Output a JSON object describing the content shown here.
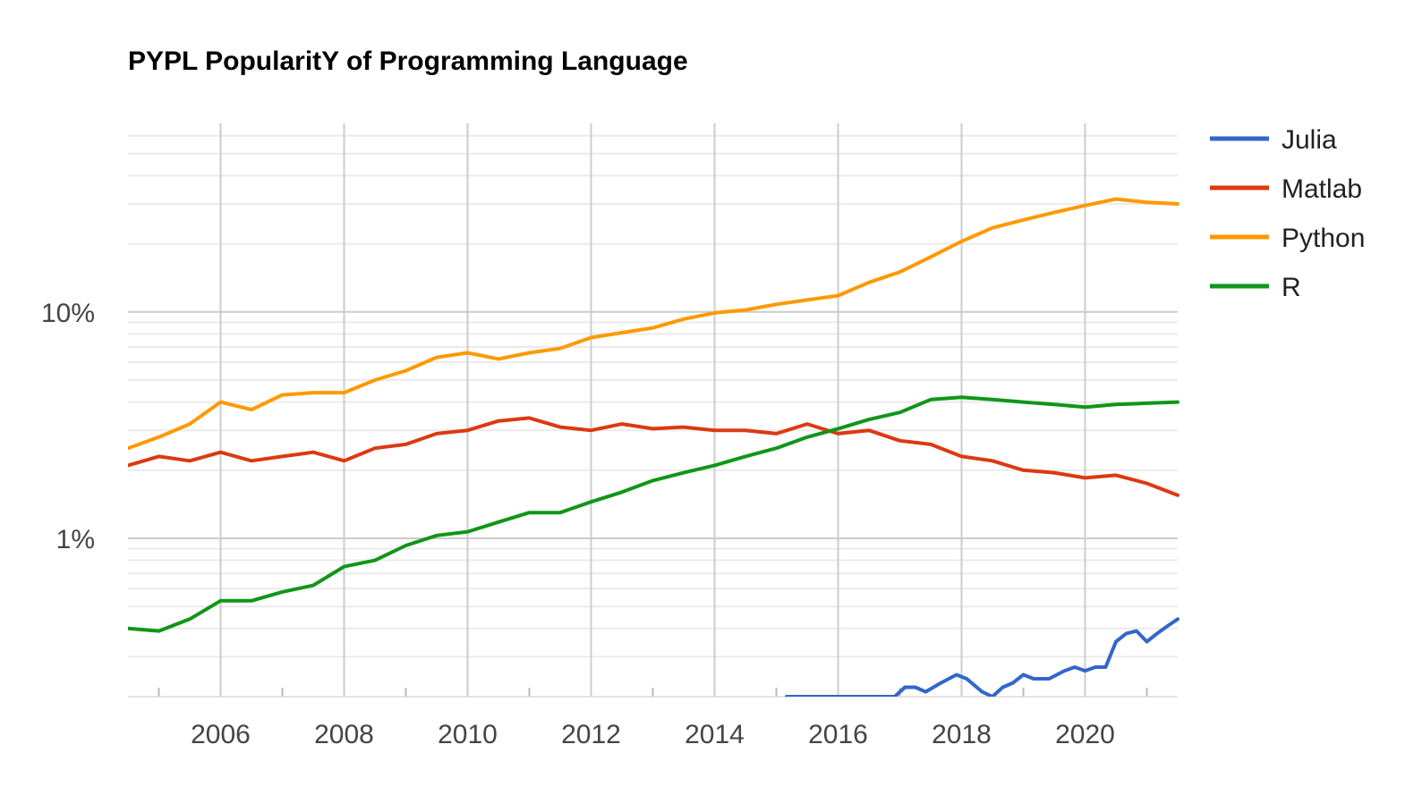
{
  "chart_data": {
    "type": "line",
    "title": "PYPL PopularitY of Programming Language",
    "xlabel": "",
    "ylabel": "",
    "x_scale": "time",
    "y_scale": "log",
    "xlim": [
      "2004-07",
      "2021-07"
    ],
    "ylim": [
      0.2,
      68
    ],
    "x_ticks": [
      {
        "value": 2006,
        "label": "2006"
      },
      {
        "value": 2008,
        "label": "2008"
      },
      {
        "value": 2010,
        "label": "2010"
      },
      {
        "value": 2012,
        "label": "2012"
      },
      {
        "value": 2014,
        "label": "2014"
      },
      {
        "value": 2016,
        "label": "2016"
      },
      {
        "value": 2018,
        "label": "2018"
      },
      {
        "value": 2020,
        "label": "2020"
      }
    ],
    "y_ticks": [
      {
        "value": 1,
        "label": "1%"
      },
      {
        "value": 10,
        "label": "10%"
      }
    ],
    "grid": true,
    "legend_position": "right",
    "series": [
      {
        "name": "Julia",
        "color": "#3366cc",
        "x": [
          "2015-03",
          "2015-05",
          "2016-01",
          "2016-03",
          "2016-06",
          "2016-09",
          "2016-12",
          "2017-02",
          "2017-04",
          "2017-06",
          "2017-09",
          "2017-12",
          "2018-02",
          "2018-05",
          "2018-07",
          "2018-09",
          "2018-11",
          "2019-01",
          "2019-03",
          "2019-06",
          "2019-09",
          "2019-11",
          "2020-01",
          "2020-03",
          "2020-05",
          "2020-07",
          "2020-09",
          "2020-11",
          "2021-01",
          "2021-03",
          "2021-05",
          "2021-07"
        ],
        "values": [
          0.2,
          0.2,
          0.2,
          0.2,
          0.2,
          0.2,
          0.2,
          0.22,
          0.22,
          0.21,
          0.23,
          0.25,
          0.24,
          0.21,
          0.2,
          0.22,
          0.23,
          0.25,
          0.24,
          0.24,
          0.26,
          0.27,
          0.26,
          0.27,
          0.27,
          0.35,
          0.38,
          0.39,
          0.35,
          0.38,
          0.41,
          0.44
        ]
      },
      {
        "name": "Matlab",
        "color": "#dc3912",
        "x": [
          "2004-07",
          "2005-01",
          "2005-07",
          "2006-01",
          "2006-07",
          "2007-01",
          "2007-07",
          "2008-01",
          "2008-07",
          "2009-01",
          "2009-07",
          "2010-01",
          "2010-07",
          "2011-01",
          "2011-07",
          "2012-01",
          "2012-07",
          "2013-01",
          "2013-07",
          "2014-01",
          "2014-07",
          "2015-01",
          "2015-07",
          "2016-01",
          "2016-07",
          "2017-01",
          "2017-07",
          "2018-01",
          "2018-07",
          "2019-01",
          "2019-07",
          "2020-01",
          "2020-07",
          "2021-01",
          "2021-07"
        ],
        "values": [
          2.1,
          2.3,
          2.2,
          2.4,
          2.2,
          2.3,
          2.4,
          2.2,
          2.5,
          2.6,
          2.9,
          3.0,
          3.3,
          3.4,
          3.1,
          3.0,
          3.2,
          3.05,
          3.1,
          3.0,
          3.0,
          2.9,
          3.2,
          2.9,
          3.0,
          2.7,
          2.6,
          2.3,
          2.2,
          2.0,
          1.95,
          1.85,
          1.9,
          1.75,
          1.55
        ]
      },
      {
        "name": "Python",
        "color": "#ff9900",
        "x": [
          "2004-07",
          "2005-01",
          "2005-07",
          "2006-01",
          "2006-07",
          "2007-01",
          "2007-07",
          "2008-01",
          "2008-07",
          "2009-01",
          "2009-07",
          "2010-01",
          "2010-07",
          "2011-01",
          "2011-07",
          "2012-01",
          "2012-07",
          "2013-01",
          "2013-07",
          "2014-01",
          "2014-07",
          "2015-01",
          "2015-07",
          "2016-01",
          "2016-07",
          "2017-01",
          "2017-07",
          "2018-01",
          "2018-07",
          "2019-01",
          "2019-07",
          "2020-01",
          "2020-07",
          "2021-01",
          "2021-07"
        ],
        "values": [
          2.5,
          2.8,
          3.2,
          4.0,
          3.7,
          4.3,
          4.4,
          4.4,
          5.0,
          5.5,
          6.3,
          6.6,
          6.2,
          6.6,
          6.9,
          7.7,
          8.1,
          8.5,
          9.3,
          9.9,
          10.2,
          10.8,
          11.3,
          11.8,
          13.5,
          15.0,
          17.5,
          20.5,
          23.5,
          25.5,
          27.5,
          29.5,
          31.5,
          30.5,
          30.0
        ]
      },
      {
        "name": "R",
        "color": "#109618",
        "x": [
          "2004-07",
          "2005-01",
          "2005-07",
          "2006-01",
          "2006-07",
          "2007-01",
          "2007-07",
          "2008-01",
          "2008-07",
          "2009-01",
          "2009-07",
          "2010-01",
          "2010-07",
          "2011-01",
          "2011-07",
          "2012-01",
          "2012-07",
          "2013-01",
          "2013-07",
          "2014-01",
          "2014-07",
          "2015-01",
          "2015-07",
          "2016-01",
          "2016-07",
          "2017-01",
          "2017-07",
          "2018-01",
          "2018-07",
          "2019-01",
          "2019-07",
          "2020-01",
          "2020-07",
          "2021-01",
          "2021-07"
        ],
        "values": [
          0.4,
          0.39,
          0.44,
          0.53,
          0.53,
          0.58,
          0.62,
          0.75,
          0.8,
          0.93,
          1.03,
          1.07,
          1.18,
          1.3,
          1.3,
          1.45,
          1.6,
          1.8,
          1.95,
          2.1,
          2.3,
          2.5,
          2.8,
          3.05,
          3.35,
          3.6,
          4.1,
          4.2,
          4.1,
          4.0,
          3.9,
          3.8,
          3.9,
          3.95,
          4.0
        ]
      }
    ]
  }
}
